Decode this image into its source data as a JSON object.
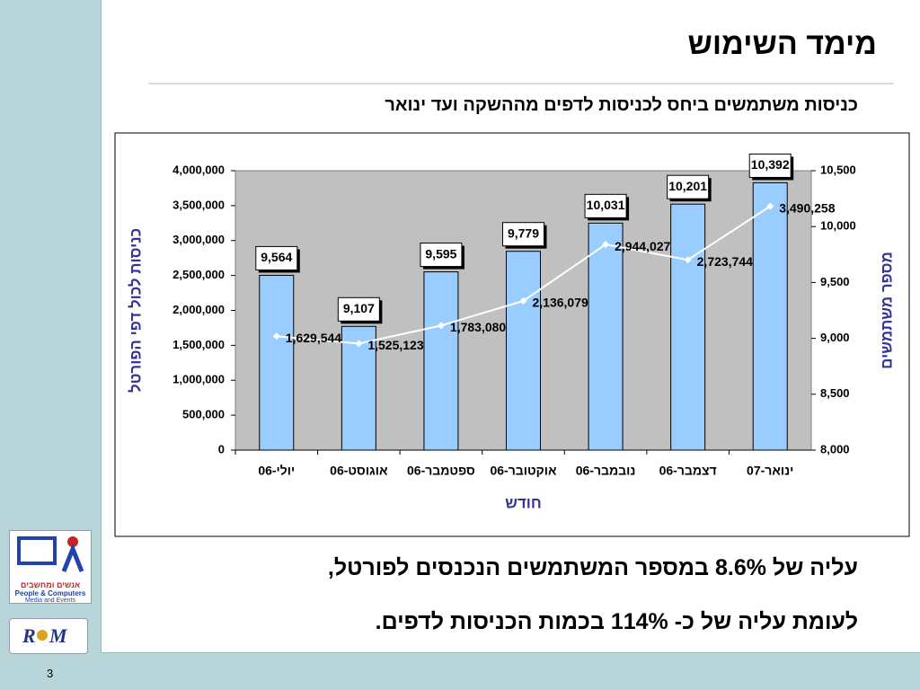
{
  "title": "מימד השימוש",
  "subtitle": "כניסות משתמשים ביחס לכניסות לדפים מההשקה ועד ינואר",
  "chart_data": {
    "type": "bar_line",
    "categories": [
      "יולי-06",
      "אוגוסט-06",
      "ספטמבר-06",
      "אוקטובר-06",
      "נובמבר-06",
      "דצמבר-06",
      "ינואר-07"
    ],
    "series": [
      {
        "type": "bar",
        "axis": "y2",
        "color": "#99ccff",
        "values": [
          9564,
          9107,
          9595,
          9779,
          10031,
          10201,
          10392
        ],
        "value_labels": [
          "9,564",
          "9,107",
          "9,595",
          "9,779",
          "10,031",
          "10,201",
          "10,392"
        ]
      },
      {
        "type": "line",
        "axis": "y",
        "color": "#ffffff",
        "values": [
          1629544,
          1525123,
          1783080,
          2136079,
          2944027,
          2723744,
          3490258
        ],
        "value_labels": [
          "1,629,544",
          "1,525,123",
          "1,783,080",
          "2,136,079",
          "2,944,027",
          "2,723,744",
          "3,490,258"
        ]
      }
    ],
    "x_label": "חודש",
    "y_label": "כניסות לכול דפי הפורטל",
    "y2_label": "מספר משתמשים",
    "ylim": [
      0,
      4000000
    ],
    "yticks": [
      0,
      {
        "value": 500000,
        "label": "500,000"
      },
      {
        "value": 1000000,
        "label": "1,000,000"
      },
      {
        "value": 1500000,
        "label": "1,500,000"
      },
      {
        "value": 2000000,
        "label": "2,000,000"
      },
      {
        "value": 2500000,
        "label": "2,500,000"
      },
      {
        "value": 3000000,
        "label": "3,000,000"
      },
      {
        "value": 3500000,
        "label": "3,500,000"
      },
      {
        "value": 4000000,
        "label": "4,000,000"
      }
    ],
    "y2lim": [
      8000,
      10500
    ],
    "y2ticks": [
      {
        "value": 8000,
        "label": "8,000"
      },
      {
        "value": 8500,
        "label": "8,500"
      },
      {
        "value": 9000,
        "label": "9,000"
      },
      {
        "value": 9500,
        "label": "9,500"
      },
      {
        "value": 10000,
        "label": "10,000"
      },
      {
        "value": 10500,
        "label": "10,500"
      }
    ],
    "plot_background": "#c0c0c0"
  },
  "text_lines": [
    "עליה של 8.6% במספר המשתמשים הנכנסים לפורטל,",
    "לעומת עליה של כ- 114% בכמות הכניסות לדפים."
  ],
  "logos": {
    "people_he": "אנשים ומחשבים",
    "people_en": "People & Computers",
    "people_sub": "Media and Events",
    "rpm_r": "R",
    "rpm_m": "M"
  },
  "page_number": "3"
}
